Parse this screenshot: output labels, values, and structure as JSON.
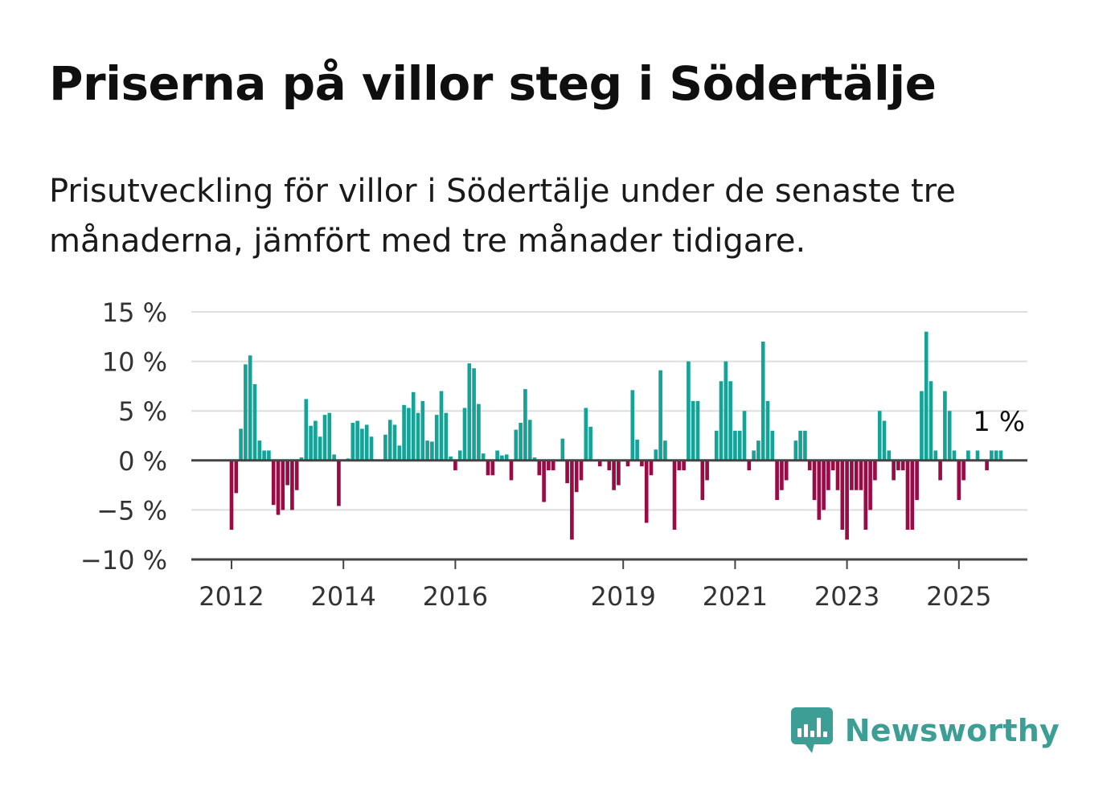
{
  "title": "Priserna på villor steg i Södertälje",
  "subtitle": "Prisutveckling för villor i Södertälje under de senaste tre månaderna, jämfört med tre månader tidigare.",
  "brand": {
    "name": "Newsworthy",
    "icon": "bar-chart-speech-bubble-icon",
    "color": "#3d9e95"
  },
  "colors": {
    "positive": "#13a397",
    "negative": "#9a0a45",
    "grid": "#dddddd",
    "zero_line": "#444444"
  },
  "chart_data": {
    "type": "bar",
    "x_start": "2012-01",
    "frequency": "monthly",
    "x_ticks": [
      "2012",
      "2014",
      "2016",
      "2019",
      "2021",
      "2023",
      "2025"
    ],
    "ylim": [
      -10,
      15
    ],
    "y_ticks": [
      15,
      10,
      5,
      0,
      -5,
      -10
    ],
    "y_tick_labels": [
      "15 %",
      "10 %",
      "5 %",
      "0 %",
      "−5 %",
      "−10 %"
    ],
    "grid": true,
    "last_value_label": "1 %",
    "values": [
      -7,
      -3.3,
      3.2,
      9.7,
      10.6,
      7.7,
      2,
      1,
      1,
      -4.5,
      -5.5,
      -5,
      -2.5,
      -5,
      -3,
      0.3,
      6.2,
      3.5,
      4,
      2.4,
      4.6,
      4.8,
      0.6,
      -4.6,
      0,
      0.2,
      3.8,
      4,
      3.2,
      3.6,
      2.4,
      0.1,
      0,
      2.6,
      4.1,
      3.6,
      1.5,
      5.6,
      5.3,
      6.9,
      4.8,
      6,
      2,
      1.9,
      4.6,
      7,
      4.8,
      0.4,
      -1,
      1,
      5.3,
      9.8,
      9.3,
      5.7,
      0.7,
      -1.5,
      -1.5,
      1,
      0.5,
      0.6,
      -2,
      3.1,
      3.8,
      7.2,
      4.1,
      0.3,
      -1.5,
      -4.2,
      -1,
      -1,
      0,
      2.2,
      -2.3,
      -8,
      -3.2,
      -2,
      5.3,
      3.4,
      0.1,
      -0.6,
      0,
      -1,
      -3,
      -2.5,
      0,
      -0.6,
      7.1,
      2.1,
      -0.6,
      -6.3,
      -1.5,
      1.1,
      9.1,
      2,
      0,
      -7,
      -1,
      -1,
      10,
      6,
      6,
      -4,
      -2,
      0,
      3,
      8,
      10,
      8,
      3,
      3,
      5,
      -1,
      1,
      2,
      12,
      6,
      3,
      -4,
      -3,
      -2,
      0,
      2,
      3,
      3,
      -1,
      -4,
      -6,
      -5,
      -3,
      -1,
      -3,
      -7,
      -8,
      -3,
      -3,
      -3,
      -7,
      -5,
      -2,
      5,
      4,
      1,
      -2,
      -1,
      -1,
      -7,
      -7,
      -4,
      7,
      13,
      8,
      1,
      -2,
      7,
      5,
      1,
      -4,
      -2,
      1,
      0,
      1,
      0,
      -1,
      1,
      1,
      1
    ]
  }
}
